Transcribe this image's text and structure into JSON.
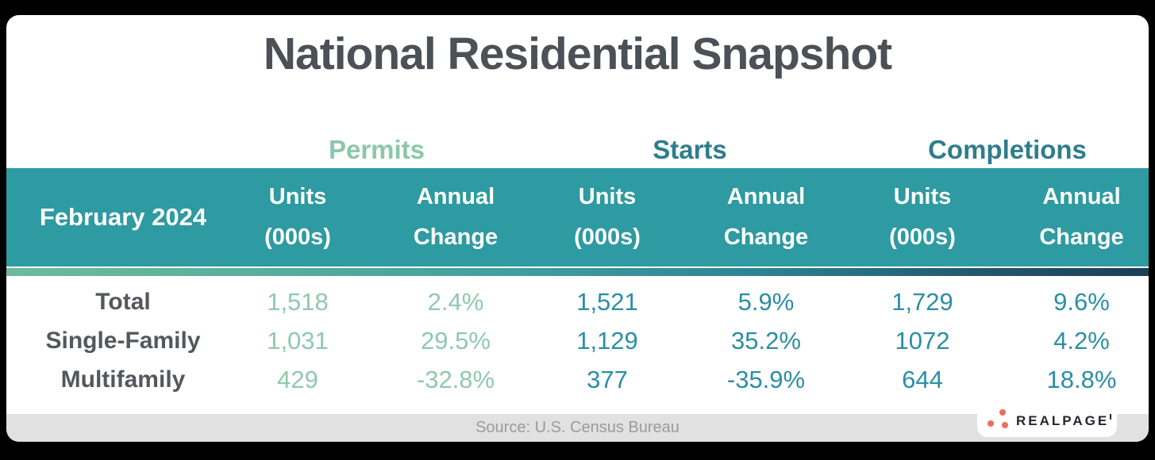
{
  "title": "National Residential Snapshot",
  "table": {
    "period_label": "February 2024",
    "groups": [
      {
        "label": "Permits"
      },
      {
        "label": "Starts"
      },
      {
        "label": "Completions"
      }
    ],
    "subheaders": {
      "units_line1": "Units",
      "units_line2": "(000s)",
      "annual_line1": "Annual",
      "annual_line2": "Change"
    },
    "rows": [
      {
        "label": "Total",
        "cells": [
          "1,518",
          "2.4%",
          "1,521",
          "5.9%",
          "1,729",
          "9.6%"
        ]
      },
      {
        "label": "Single-Family",
        "cells": [
          "1,031",
          "29.5%",
          "1,129",
          "35.2%",
          "1072",
          "4.2%"
        ]
      },
      {
        "label": "Multifamily",
        "cells": [
          "429",
          "-32.8%",
          "377",
          "-35.9%",
          "644",
          "18.8%"
        ]
      }
    ]
  },
  "footer": {
    "source": "Source: U.S. Census Bureau"
  },
  "logo": {
    "brand": "REALPAGE"
  },
  "colors": {
    "header_band_teal": "#2E9AA1",
    "permits_accent": "#8CC7AB",
    "starts_completions_accent": "#2E7D8C",
    "value_teal": "#2B8EA4",
    "title_gray": "#4B5156",
    "row_label_gray": "#54585C",
    "footer_bg": "#E1E1E1",
    "footer_text": "#9B9B9B",
    "logo_dot_coral": "#EC6F5C",
    "gradient_left": "#6FBA9B",
    "gradient_right": "#1D3E58"
  },
  "chart_data": {
    "type": "table",
    "title": "National Residential Snapshot",
    "period": "February 2024",
    "column_groups": [
      "Permits",
      "Starts",
      "Completions"
    ],
    "columns_per_group": [
      "Units (000s)",
      "Annual Change"
    ],
    "rows": [
      {
        "label": "Total",
        "permits": {
          "units_000s": 1518,
          "annual_change_pct": 2.4
        },
        "starts": {
          "units_000s": 1521,
          "annual_change_pct": 5.9
        },
        "completions": {
          "units_000s": 1729,
          "annual_change_pct": 9.6
        }
      },
      {
        "label": "Single-Family",
        "permits": {
          "units_000s": 1031,
          "annual_change_pct": 29.5
        },
        "starts": {
          "units_000s": 1129,
          "annual_change_pct": 35.2
        },
        "completions": {
          "units_000s": 1072,
          "annual_change_pct": 4.2
        }
      },
      {
        "label": "Multifamily",
        "permits": {
          "units_000s": 429,
          "annual_change_pct": -32.8
        },
        "starts": {
          "units_000s": 377,
          "annual_change_pct": -35.9
        },
        "completions": {
          "units_000s": 644,
          "annual_change_pct": 18.8
        }
      }
    ],
    "source": "Source: U.S. Census Bureau"
  }
}
